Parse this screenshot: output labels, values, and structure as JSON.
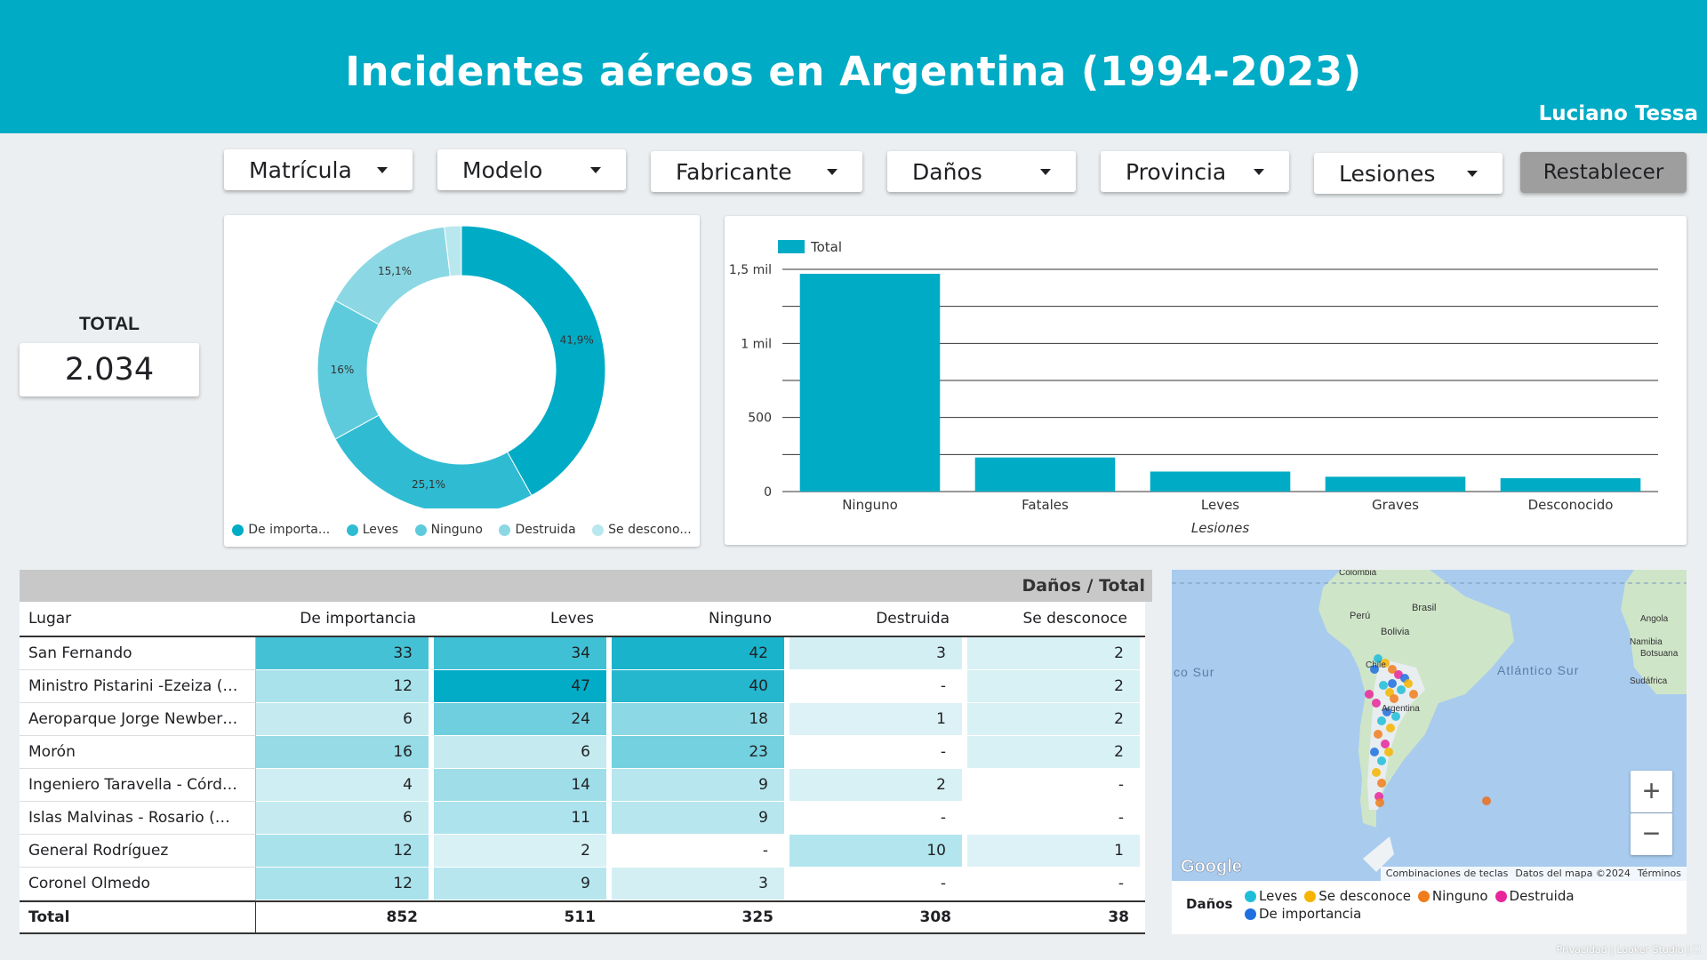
{
  "header": {
    "title": "Incidentes aéreos en Argentina (1994-2023)",
    "author": "Luciano Tessa"
  },
  "filters": [
    {
      "label": "Matrícula"
    },
    {
      "label": "Modelo"
    },
    {
      "label": "Fabricante"
    },
    {
      "label": "Daños"
    },
    {
      "label": "Provincia"
    },
    {
      "label": "Lesiones"
    }
  ],
  "reset_label": "Restablecer",
  "scorecard": {
    "label": "TOTAL",
    "value": "2.034"
  },
  "donut": {
    "slices": [
      {
        "name": "De importa...",
        "pct": 41.9,
        "label": "41,9%",
        "color": "#00abc6"
      },
      {
        "name": "Leves",
        "pct": 25.1,
        "label": "25,1%",
        "color": "#2fbcd3"
      },
      {
        "name": "Ninguno",
        "pct": 16.0,
        "label": "16%",
        "color": "#5ecbdc"
      },
      {
        "name": "Destruida",
        "pct": 15.1,
        "label": "15,1%",
        "color": "#8bd8e4"
      },
      {
        "name": "Se descono...",
        "pct": 1.9,
        "label": "",
        "color": "#b9e7ee"
      }
    ]
  },
  "chart_data": {
    "type": "bar",
    "categories": [
      "Ninguno",
      "Fatales",
      "Leves",
      "Graves",
      "Desconocido"
    ],
    "series": [
      {
        "name": "Total",
        "values": [
          1470,
          230,
          135,
          100,
          90
        ]
      }
    ],
    "xlabel": "Lesiones",
    "ylabel": "",
    "ylim": [
      0,
      1500
    ],
    "yticks": [
      "0",
      "500",
      "1 mil",
      "1,5 mil"
    ],
    "legend": "top-left",
    "grid": true,
    "color": "#00abc6"
  },
  "table": {
    "band_label": "Daños / Total",
    "columns": [
      "Lugar",
      "De importancia",
      "Leves",
      "Ninguno",
      "Destruida",
      "Se desconoce"
    ],
    "rows": [
      [
        "San Fernando",
        "33",
        "34",
        "42",
        "3",
        "2"
      ],
      [
        "Ministro Pistarini -Ezeiza (S...",
        "12",
        "47",
        "40",
        "-",
        "2"
      ],
      [
        "Aeroparque Jorge Newbery...",
        "6",
        "24",
        "18",
        "1",
        "2"
      ],
      [
        "Morón",
        "16",
        "6",
        "23",
        "-",
        "2"
      ],
      [
        "Ingeniero Taravella - Córdo...",
        "4",
        "14",
        "9",
        "2",
        "-"
      ],
      [
        "Islas Malvinas - Rosario (SA...",
        "6",
        "11",
        "9",
        "-",
        "-"
      ],
      [
        "General Rodríguez",
        "12",
        "2",
        "-",
        "10",
        "1"
      ],
      [
        "Coronel Olmedo",
        "12",
        "9",
        "3",
        "-",
        "-"
      ]
    ],
    "total": [
      "Total",
      "852",
      "511",
      "325",
      "308",
      "38"
    ]
  },
  "map": {
    "labels": {
      "colombia": "Colombia",
      "brasil": "Brasil",
      "peru": "Perú",
      "bolivia": "Bolivia",
      "chile": "Chile",
      "argentina": "Argentina",
      "angola": "Angola",
      "namibia": "Namibia",
      "botswana": "Botsuana",
      "sudafrica": "Sudáfrica",
      "atlantico": "Atlántico Sur",
      "pacifico": "co Sur"
    },
    "attribution": [
      "Combinaciones de teclas",
      "Datos del mapa ©2024",
      "Términos"
    ],
    "google": "Google",
    "legend_title": "Daños",
    "legend_items": [
      {
        "label": "Leves",
        "color": "#1fbdd8"
      },
      {
        "label": "Se desconoce",
        "color": "#f6b400"
      },
      {
        "label": "Ninguno",
        "color": "#f07c1c"
      },
      {
        "label": "Destruida",
        "color": "#e8259a"
      },
      {
        "label": "De importancia",
        "color": "#1e6fe0"
      }
    ],
    "zoom_in": "+",
    "zoom_out": "−"
  },
  "footer": {
    "privacy": "Privacidad",
    "brand": "Looker Studio"
  }
}
